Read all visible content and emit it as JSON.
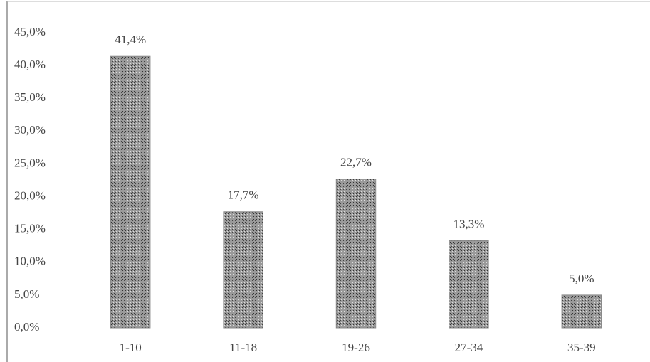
{
  "chart_data": {
    "type": "bar",
    "categories": [
      "1-10",
      "11-18",
      "19-26",
      "27-34",
      "35-39"
    ],
    "values": [
      41.4,
      17.7,
      22.7,
      13.3,
      5.0
    ],
    "value_labels": [
      "41,4%",
      "17,7%",
      "22,7%",
      "13,3%",
      "5,0%"
    ],
    "color": "#8a8a8a",
    "ylim": [
      0,
      45
    ],
    "yticks": [
      {
        "value": 0,
        "label": "0,0%"
      },
      {
        "value": 5,
        "label": "5,0%"
      },
      {
        "value": 10,
        "label": "10,0%"
      },
      {
        "value": 15,
        "label": "15,0%"
      },
      {
        "value": 20,
        "label": "20,0%"
      },
      {
        "value": 25,
        "label": "25,0%"
      },
      {
        "value": 30,
        "label": "30,0%"
      },
      {
        "value": 35,
        "label": "35,0%"
      },
      {
        "value": 40,
        "label": "40,0%"
      },
      {
        "value": 45,
        "label": "45,0%"
      }
    ],
    "grid": false
  }
}
